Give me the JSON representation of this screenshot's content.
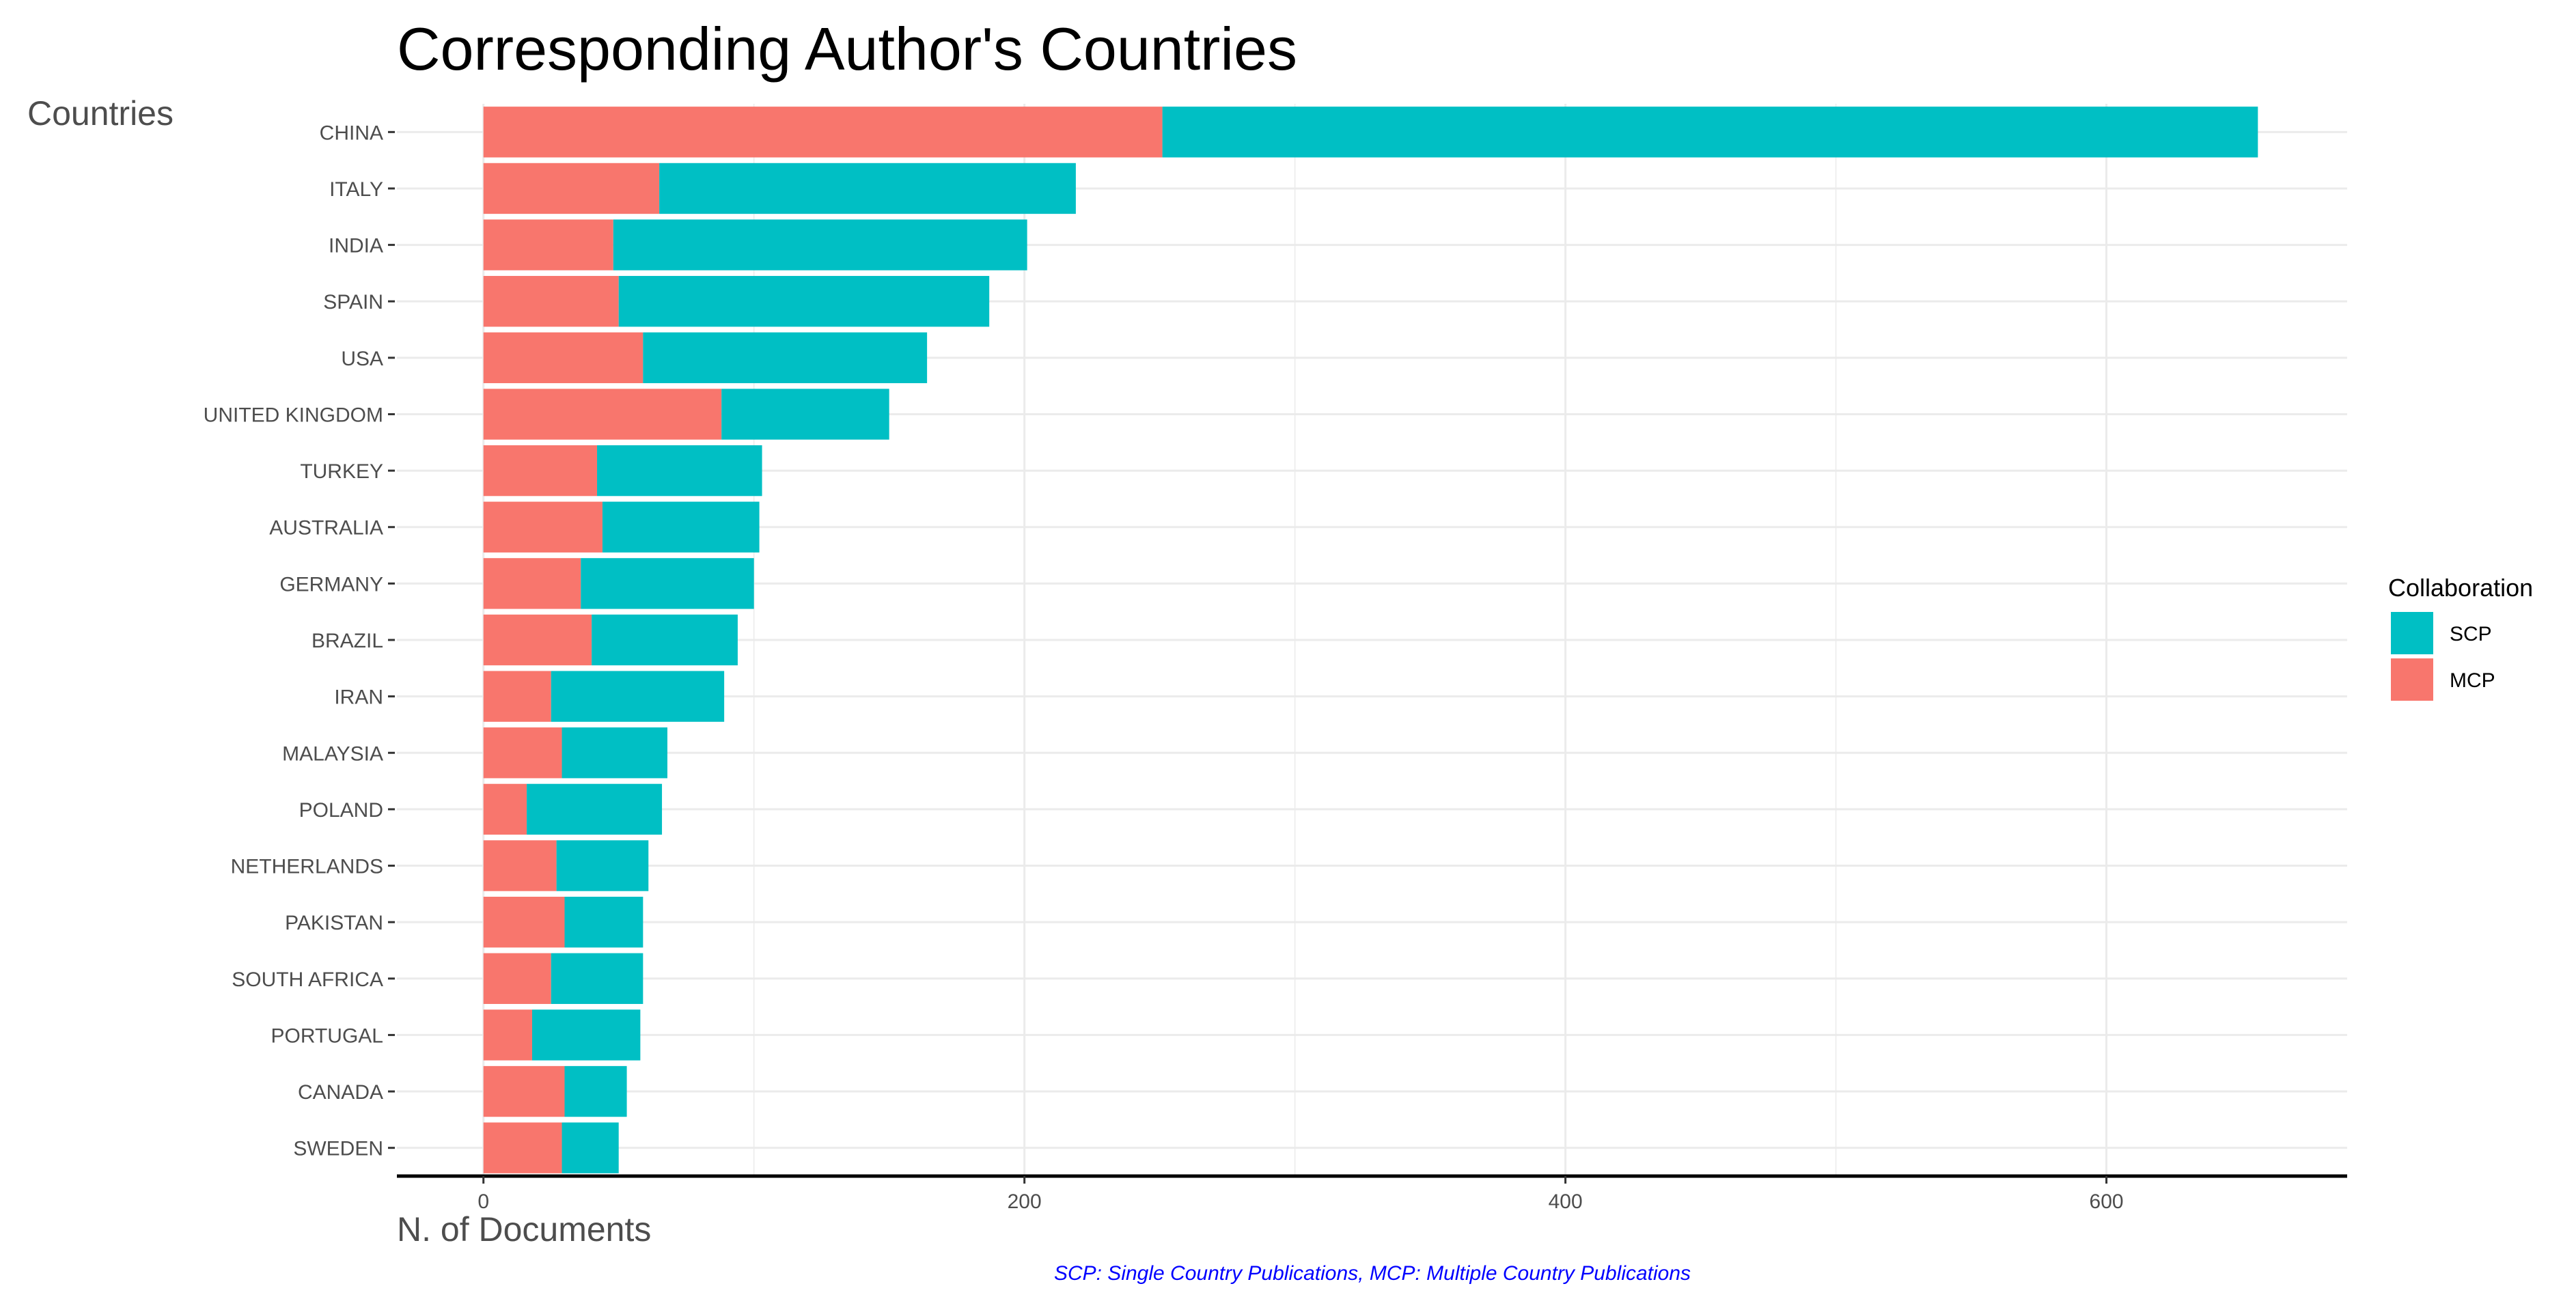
{
  "chart_data": {
    "type": "bar",
    "orientation": "horizontal",
    "stacked": true,
    "title": "Corresponding Author's Countries",
    "ylabel": "Countries",
    "xlabel": "N. of Documents",
    "caption": "SCP: Single Country Publications, MCP: Multiple Country Publications",
    "xlim": [
      -32,
      689
    ],
    "xticks": [
      0,
      200,
      400,
      600
    ],
    "grid": true,
    "legend": {
      "title": "Collaboration",
      "position": "right",
      "items": [
        {
          "label": "SCP",
          "color": "#00BFC4"
        },
        {
          "label": "MCP",
          "color": "#F8766D"
        }
      ]
    },
    "categories": [
      "CHINA",
      "ITALY",
      "INDIA",
      "SPAIN",
      "USA",
      "UNITED KINGDOM",
      "TURKEY",
      "AUSTRALIA",
      "GERMANY",
      "BRAZIL",
      "IRAN",
      "MALAYSIA",
      "POLAND",
      "NETHERLANDS",
      "PAKISTAN",
      "SOUTH AFRICA",
      "PORTUGAL",
      "CANADA",
      "SWEDEN"
    ],
    "series": [
      {
        "name": "MCP",
        "color": "#F8766D",
        "values": [
          251,
          65,
          48,
          50,
          59,
          88,
          42,
          44,
          36,
          40,
          25,
          29,
          16,
          27,
          30,
          25,
          18,
          30,
          29
        ]
      },
      {
        "name": "SCP",
        "color": "#00BFC4",
        "values": [
          405,
          154,
          153,
          137,
          105,
          62,
          61,
          58,
          64,
          54,
          64,
          39,
          50,
          34,
          29,
          34,
          40,
          23,
          21
        ]
      }
    ]
  },
  "colors": {
    "background": "#ffffff",
    "grid": "#ebebeb",
    "axis": "#000000",
    "tick_text": "#4d4d4d",
    "title_text": "#000000",
    "caption_text": "#0000ff"
  }
}
